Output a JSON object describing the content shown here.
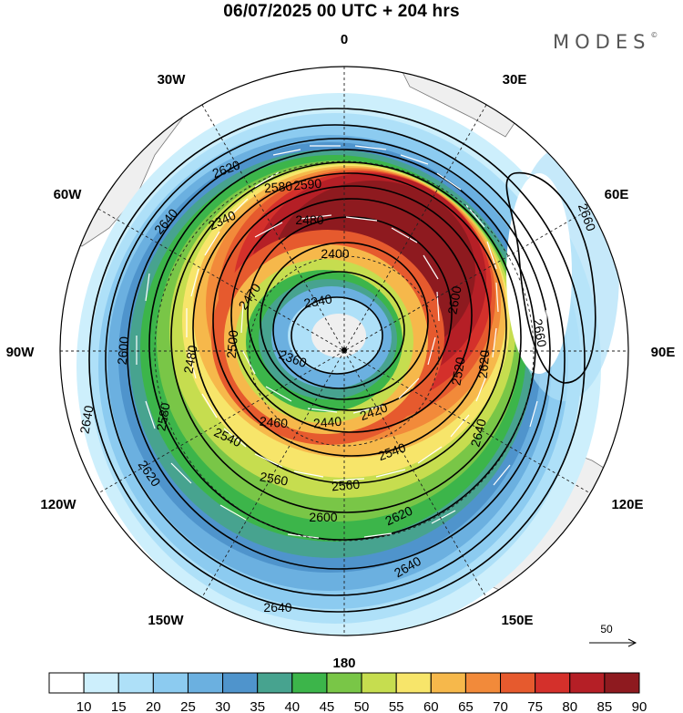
{
  "header": {
    "title": "06/07/2025  00 UTC  + 204 hrs",
    "brand": "MODES",
    "brand_mark": "©"
  },
  "map": {
    "projection": "polar-stereographic",
    "pole": "south",
    "longitude_labels": [
      {
        "key": "lon-0",
        "text": "0"
      },
      {
        "key": "lon-30e",
        "text": "30E"
      },
      {
        "key": "lon-60e",
        "text": "60E"
      },
      {
        "key": "lon-90e",
        "text": "90E"
      },
      {
        "key": "lon-120e",
        "text": "120E"
      },
      {
        "key": "lon-150e",
        "text": "150E"
      },
      {
        "key": "lon-180",
        "text": "180"
      },
      {
        "key": "lon-150w",
        "text": "150W"
      },
      {
        "key": "lon-120w",
        "text": "120W"
      },
      {
        "key": "lon-90w",
        "text": "90W"
      },
      {
        "key": "lon-60w",
        "text": "60W"
      },
      {
        "key": "lon-30w",
        "text": "30W"
      }
    ],
    "contour_labels": [
      "2340",
      "2360",
      "2400",
      "2420",
      "2440",
      "2460",
      "2470",
      "2480",
      "2500",
      "2520",
      "2540",
      "2560",
      "2580",
      "2590",
      "2600",
      "2620",
      "2640",
      "2660"
    ],
    "vector_reference": {
      "value": "50"
    }
  },
  "colorbar": {
    "ticks": [
      "10",
      "15",
      "20",
      "25",
      "30",
      "35",
      "40",
      "45",
      "50",
      "55",
      "60",
      "65",
      "70",
      "75",
      "80",
      "85",
      "90"
    ],
    "colors": [
      "#ffffff",
      "#cdeffc",
      "#aee0f8",
      "#8ccbf0",
      "#6bb0e0",
      "#4f94cc",
      "#47a38f",
      "#3cb54a",
      "#79c647",
      "#c6dd4f",
      "#f7e56a",
      "#f6b84b",
      "#f28a3a",
      "#e65a2e",
      "#d4302b",
      "#b51f26",
      "#8e1a1f"
    ]
  }
}
